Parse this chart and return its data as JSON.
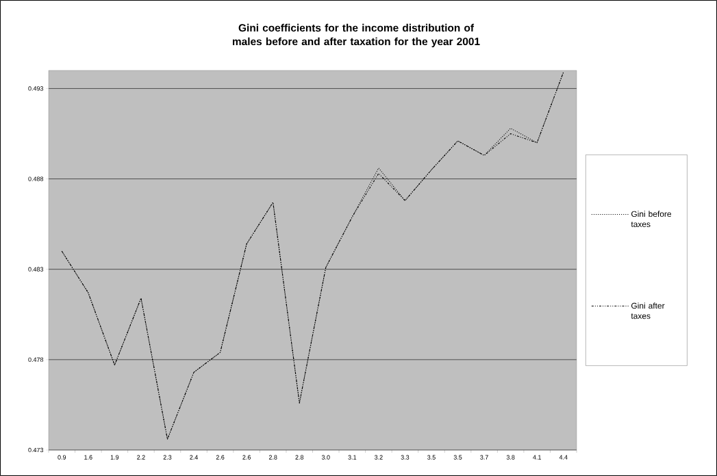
{
  "chart_data": {
    "type": "line",
    "title": "Gini coefficients for the income distribution of males before and after taxation for the year 2001",
    "categories": [
      "0.9",
      "1.6",
      "1.9",
      "2.2",
      "2.3",
      "2.4",
      "2.6",
      "2.6",
      "2.8",
      "2.8",
      "3.0",
      "3.1",
      "3.2",
      "3.3",
      "3.5",
      "3.5",
      "3.7",
      "3.8",
      "4.1",
      "4.4"
    ],
    "series": [
      {
        "name": "Gini before taxes",
        "color": "#000000",
        "line_style": "dotted",
        "values": [
          0.484,
          0.4817,
          0.4777,
          0.4814,
          0.4736,
          0.4773,
          0.4784,
          0.4844,
          0.4867,
          0.4756,
          0.4831,
          0.4859,
          0.4886,
          0.4868,
          0.4885,
          0.4901,
          0.4893,
          0.4908,
          0.49,
          0.4939
        ]
      },
      {
        "name": "Gini after taxes",
        "color": "#000000",
        "line_style": "dashed",
        "values": [
          0.484,
          0.4817,
          0.4777,
          0.4814,
          0.4736,
          0.4773,
          0.4784,
          0.4844,
          0.4867,
          0.4756,
          0.4831,
          0.4859,
          0.4883,
          0.4868,
          0.4885,
          0.4901,
          0.4893,
          0.4905,
          0.49,
          0.4939
        ]
      }
    ],
    "ylim": [
      0.473,
      0.494
    ],
    "yticks": [
      0.473,
      0.478,
      0.483,
      0.488,
      0.493
    ],
    "grid": "y",
    "legend": "right",
    "marker": "none"
  }
}
